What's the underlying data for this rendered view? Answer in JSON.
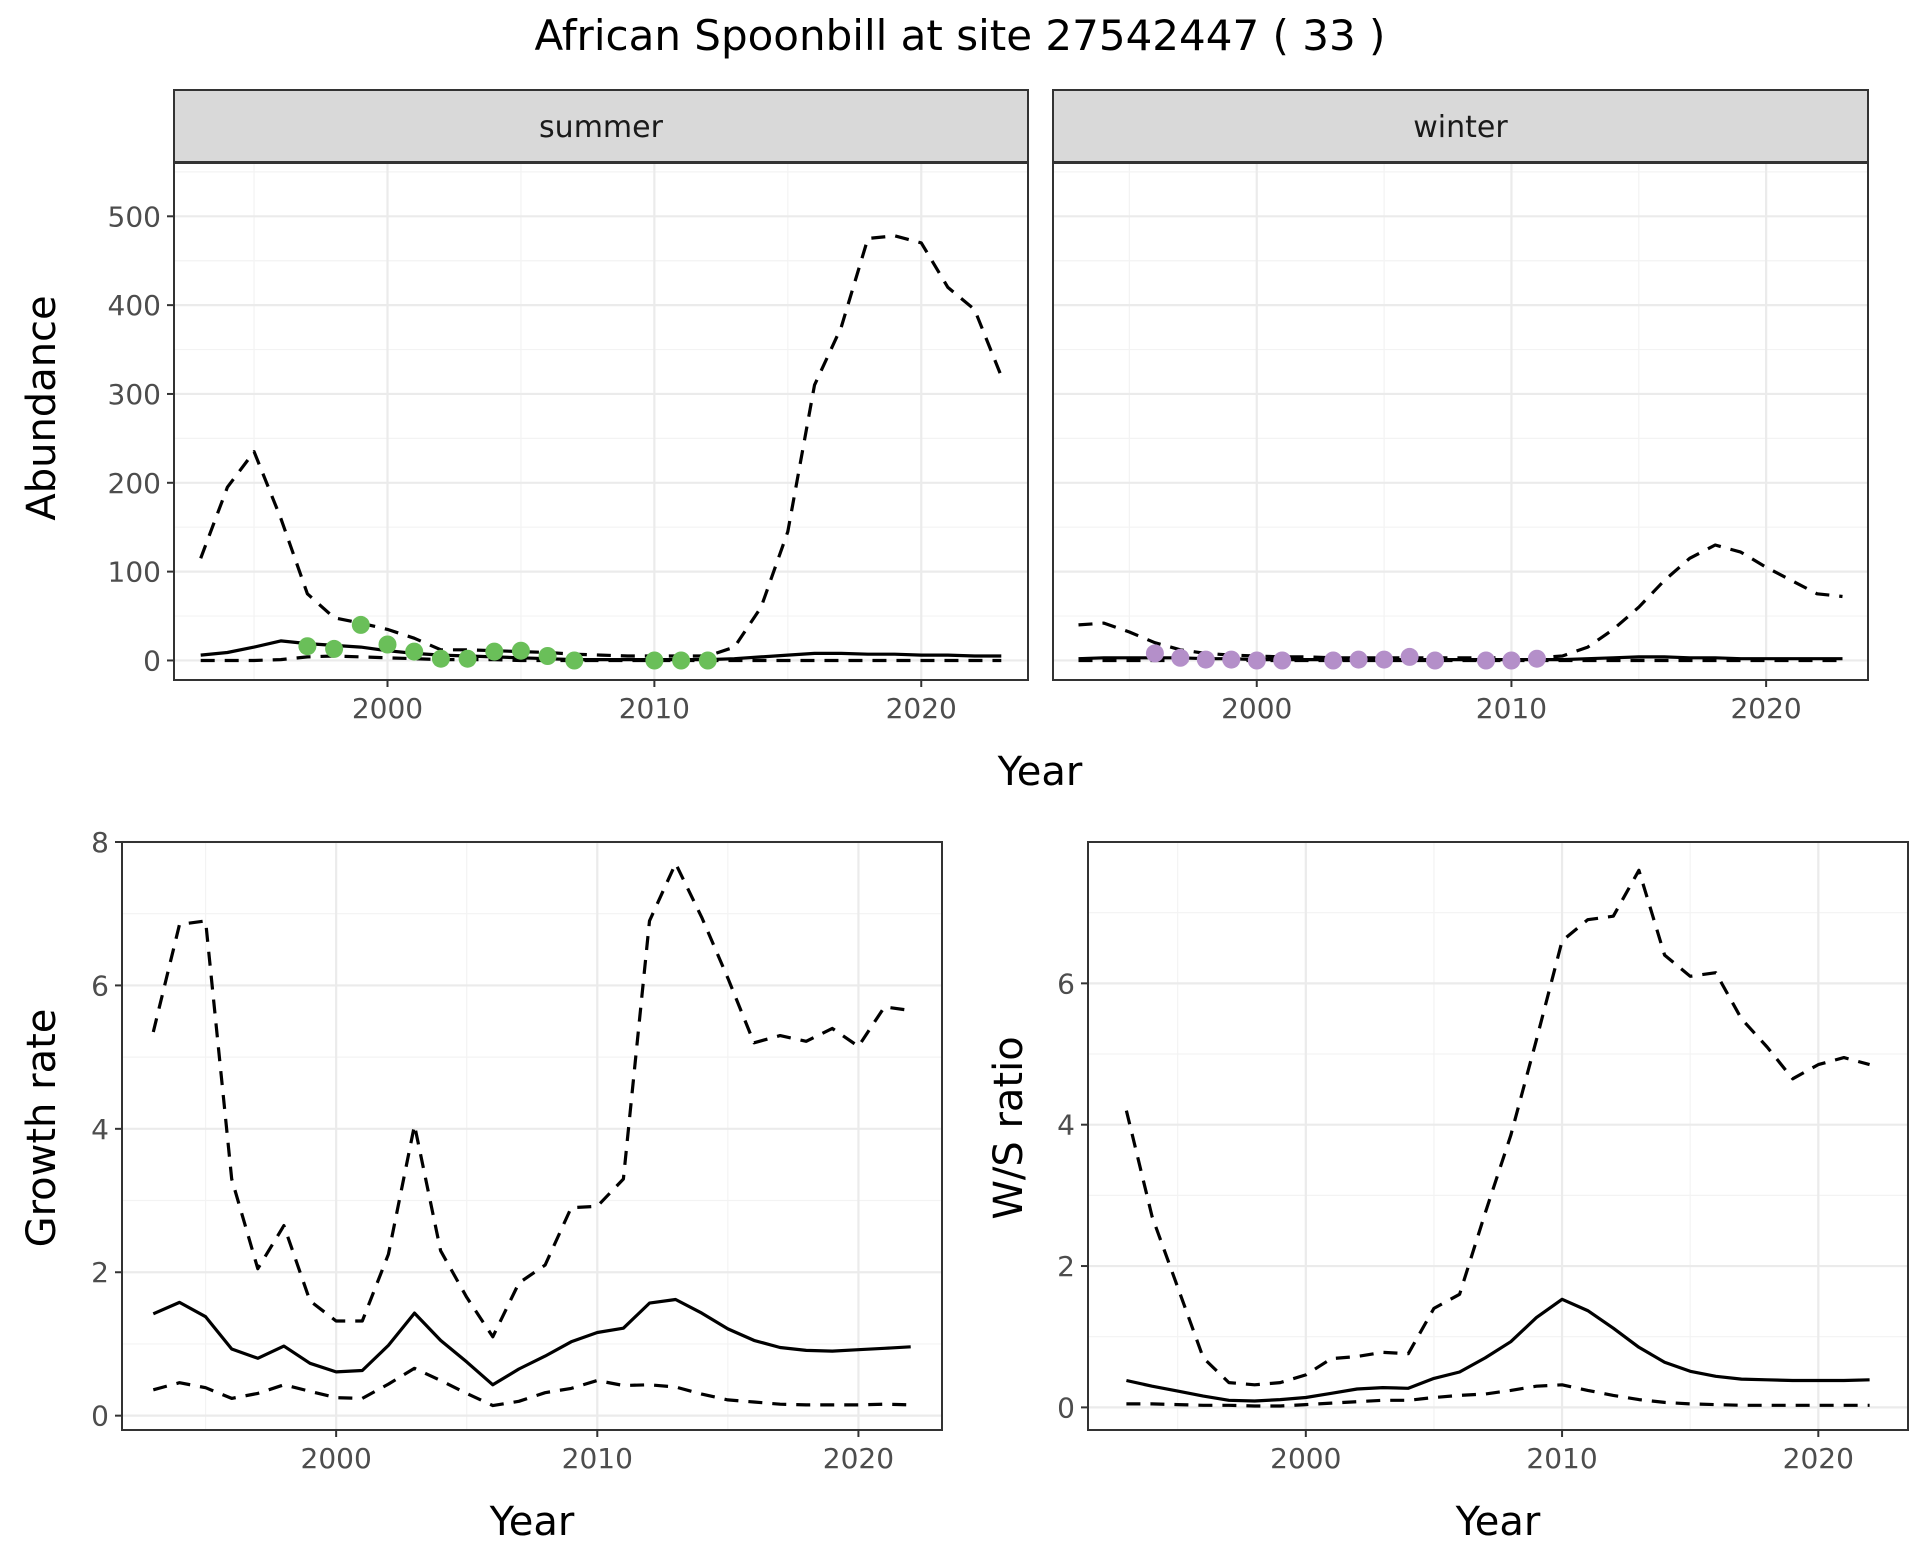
{
  "title": "African Spoonbill at site 27542447 ( 33 )",
  "chart_data": [
    {
      "type": "line",
      "panel": "abundance",
      "facets": [
        "summer",
        "winter"
      ],
      "xlabel": "Year",
      "ylabel": "Abundance",
      "xlim": [
        1992,
        2024
      ],
      "ylim": [
        -22,
        560
      ],
      "xticks": [
        2000,
        2010,
        2020
      ],
      "yticks": [
        0,
        100,
        200,
        300,
        400,
        500
      ],
      "grid": true,
      "colors": {
        "summer_points": "#6abf59",
        "winter_points": "#b48fc9",
        "lines": "#000000"
      },
      "summer": {
        "points": {
          "x": [
            1997,
            1998,
            1999,
            2000,
            2001,
            2002,
            2003,
            2004,
            2005,
            2006,
            2007,
            2010,
            2011,
            2012
          ],
          "y": [
            16,
            13,
            40,
            18,
            10,
            2,
            2,
            10,
            11,
            5,
            0,
            0,
            0,
            0
          ]
        },
        "lines": [
          {
            "style": "solid",
            "x": [
              1993,
              1994,
              1995,
              1996,
              1997,
              1998,
              1999,
              2000,
              2001,
              2002,
              2003,
              2004,
              2005,
              2006,
              2007,
              2008,
              2009,
              2010,
              2011,
              2012,
              2013,
              2014,
              2015,
              2016,
              2017,
              2018,
              2019,
              2020,
              2021,
              2022,
              2023
            ],
            "y": [
              6,
              9,
              15,
              22,
              19,
              17,
              15,
              11,
              8,
              6,
              5,
              4,
              3,
              2,
              1,
              1,
              1,
              1,
              1,
              1,
              2,
              4,
              6,
              8,
              8,
              7,
              7,
              6,
              6,
              5,
              5
            ]
          },
          {
            "style": "dashed",
            "x": [
              1993,
              1994,
              1995,
              1996,
              1997,
              1998,
              1999,
              2000,
              2001,
              2002,
              2003,
              2004,
              2005,
              2006,
              2007,
              2008,
              2009,
              2010,
              2011,
              2012,
              2013,
              2014,
              2015,
              2016,
              2017,
              2018,
              2019,
              2020,
              2021,
              2022,
              2023
            ],
            "y": [
              115,
              195,
              235,
              160,
              75,
              48,
              42,
              35,
              25,
              12,
              12,
              11,
              10,
              9,
              7,
              6,
              5,
              5,
              5,
              5,
              15,
              60,
              145,
              310,
              375,
              475,
              478,
              470,
              420,
              395,
              320
            ]
          },
          {
            "style": "dashed",
            "x": [
              1993,
              1994,
              1995,
              1996,
              1997,
              1998,
              1999,
              2000,
              2001,
              2002,
              2003,
              2004,
              2005,
              2006,
              2007,
              2008,
              2009,
              2010,
              2011,
              2012,
              2013,
              2014,
              2015,
              2016,
              2017,
              2018,
              2019,
              2020,
              2021,
              2022,
              2023
            ],
            "y": [
              0,
              0,
              0,
              1,
              4,
              5,
              4,
              3,
              2,
              1,
              1,
              1,
              0,
              0,
              0,
              0,
              0,
              0,
              0,
              0,
              0,
              0,
              0,
              0,
              0,
              0,
              0,
              0,
              0,
              0,
              0
            ]
          }
        ]
      },
      "winter": {
        "points": {
          "x": [
            1996,
            1997,
            1998,
            1999,
            2000,
            2001,
            2003,
            2004,
            2005,
            2006,
            2007,
            2009,
            2010,
            2011
          ],
          "y": [
            8,
            3,
            1,
            1,
            0,
            0,
            0,
            1,
            1,
            4,
            0,
            0,
            0,
            2
          ]
        },
        "lines": [
          {
            "style": "solid",
            "x": [
              1993,
              1994,
              1995,
              1996,
              1997,
              1998,
              1999,
              2000,
              2001,
              2002,
              2003,
              2004,
              2005,
              2006,
              2007,
              2008,
              2009,
              2010,
              2011,
              2012,
              2013,
              2014,
              2015,
              2016,
              2017,
              2018,
              2019,
              2020,
              2021,
              2022,
              2023
            ],
            "y": [
              2,
              3,
              3,
              3,
              3,
              2,
              2,
              1,
              1,
              1,
              1,
              1,
              1,
              1,
              1,
              1,
              1,
              1,
              1,
              1,
              2,
              3,
              4,
              4,
              3,
              3,
              2,
              2,
              2,
              2,
              2
            ]
          },
          {
            "style": "dashed",
            "x": [
              1993,
              1994,
              1995,
              1996,
              1997,
              1998,
              1999,
              2000,
              2001,
              2002,
              2003,
              2004,
              2005,
              2006,
              2007,
              2008,
              2009,
              2010,
              2011,
              2012,
              2013,
              2014,
              2015,
              2016,
              2017,
              2018,
              2019,
              2020,
              2021,
              2022,
              2023
            ],
            "y": [
              40,
              42,
              32,
              20,
              12,
              8,
              6,
              5,
              4,
              4,
              3,
              3,
              3,
              3,
              3,
              3,
              3,
              3,
              3,
              5,
              15,
              35,
              60,
              90,
              115,
              130,
              122,
              105,
              90,
              75,
              72
            ]
          },
          {
            "style": "dashed",
            "x": [
              1993,
              1994,
              1995,
              1996,
              1997,
              1998,
              1999,
              2000,
              2001,
              2002,
              2003,
              2004,
              2005,
              2006,
              2007,
              2008,
              2009,
              2010,
              2011,
              2012,
              2013,
              2014,
              2015,
              2016,
              2017,
              2018,
              2019,
              2020,
              2021,
              2022,
              2023
            ],
            "y": [
              0,
              0,
              0,
              0,
              0,
              0,
              0,
              0,
              0,
              0,
              0,
              0,
              0,
              0,
              0,
              0,
              0,
              0,
              0,
              0,
              0,
              0,
              0,
              0,
              0,
              0,
              0,
              0,
              0,
              0,
              0
            ]
          }
        ]
      }
    },
    {
      "type": "line",
      "panel": "growth",
      "xlabel": "Year",
      "ylabel": "Growth rate",
      "xlim": [
        1991.8,
        2023.2
      ],
      "ylim": [
        -0.2,
        8.0
      ],
      "xticks": [
        2000,
        2010,
        2020
      ],
      "yticks": [
        0,
        2,
        4,
        6,
        8
      ],
      "grid": true,
      "lines": [
        {
          "style": "solid",
          "x": [
            1993,
            1994,
            1995,
            1996,
            1997,
            1998,
            1999,
            2000,
            2001,
            2002,
            2003,
            2004,
            2005,
            2006,
            2007,
            2008,
            2009,
            2010,
            2011,
            2012,
            2013,
            2014,
            2015,
            2016,
            2017,
            2018,
            2019,
            2020,
            2021,
            2022
          ],
          "y": [
            1.42,
            1.58,
            1.38,
            0.93,
            0.8,
            0.97,
            0.73,
            0.61,
            0.63,
            0.98,
            1.43,
            1.05,
            0.75,
            0.43,
            0.65,
            0.83,
            1.03,
            1.16,
            1.22,
            1.57,
            1.62,
            1.43,
            1.21,
            1.05,
            0.95,
            0.91,
            0.9,
            0.92,
            0.94,
            0.96
          ]
        },
        {
          "style": "dashed",
          "x": [
            1993,
            1994,
            1995,
            1996,
            1997,
            1998,
            1999,
            2000,
            2001,
            2002,
            2003,
            2004,
            2005,
            2006,
            2007,
            2008,
            2009,
            2010,
            2011,
            2012,
            2013,
            2014,
            2015,
            2016,
            2017,
            2018,
            2019,
            2020,
            2021,
            2022
          ],
          "y": [
            5.35,
            6.85,
            6.9,
            3.3,
            2.05,
            2.65,
            1.6,
            1.32,
            1.32,
            2.25,
            4.05,
            2.3,
            1.65,
            1.1,
            1.85,
            2.1,
            2.9,
            2.92,
            3.3,
            6.9,
            7.7,
            6.95,
            6.1,
            5.2,
            5.3,
            5.22,
            5.4,
            5.15,
            5.7,
            5.65
          ]
        },
        {
          "style": "dashed",
          "x": [
            1993,
            1994,
            1995,
            1996,
            1997,
            1998,
            1999,
            2000,
            2001,
            2002,
            2003,
            2004,
            2005,
            2006,
            2007,
            2008,
            2009,
            2010,
            2011,
            2012,
            2013,
            2014,
            2015,
            2016,
            2017,
            2018,
            2019,
            2020,
            2021,
            2022
          ],
          "y": [
            0.36,
            0.46,
            0.39,
            0.24,
            0.31,
            0.43,
            0.34,
            0.25,
            0.24,
            0.44,
            0.66,
            0.49,
            0.31,
            0.14,
            0.2,
            0.32,
            0.38,
            0.49,
            0.42,
            0.43,
            0.4,
            0.3,
            0.22,
            0.19,
            0.16,
            0.15,
            0.15,
            0.15,
            0.16,
            0.15
          ]
        }
      ]
    },
    {
      "type": "line",
      "panel": "ratio",
      "xlabel": "Year",
      "ylabel": "W/S ratio",
      "xlim": [
        1991.5,
        2023.5
      ],
      "ylim": [
        -0.32,
        8.0
      ],
      "xticks": [
        2000,
        2010,
        2020
      ],
      "yticks": [
        0,
        2,
        4,
        6
      ],
      "grid": true,
      "lines": [
        {
          "style": "solid",
          "x": [
            1993,
            1994,
            1995,
            1996,
            1997,
            1998,
            1999,
            2000,
            2001,
            2002,
            2003,
            2004,
            2005,
            2006,
            2007,
            2008,
            2009,
            2010,
            2011,
            2012,
            2013,
            2014,
            2015,
            2016,
            2017,
            2018,
            2019,
            2020,
            2021,
            2022
          ],
          "y": [
            0.38,
            0.3,
            0.23,
            0.16,
            0.1,
            0.09,
            0.11,
            0.14,
            0.2,
            0.26,
            0.28,
            0.27,
            0.41,
            0.5,
            0.7,
            0.93,
            1.27,
            1.53,
            1.37,
            1.12,
            0.85,
            0.64,
            0.51,
            0.44,
            0.4,
            0.39,
            0.38,
            0.38,
            0.38,
            0.39
          ]
        },
        {
          "style": "dashed",
          "x": [
            1993,
            1994,
            1995,
            1996,
            1997,
            1998,
            1999,
            2000,
            2001,
            2002,
            2003,
            2004,
            2005,
            2006,
            2007,
            2008,
            2009,
            2010,
            2011,
            2012,
            2013,
            2014,
            2015,
            2016,
            2017,
            2018,
            2019,
            2020,
            2021,
            2022
          ],
          "y": [
            4.2,
            2.7,
            1.7,
            0.7,
            0.35,
            0.32,
            0.35,
            0.46,
            0.69,
            0.72,
            0.78,
            0.76,
            1.4,
            1.6,
            2.75,
            3.85,
            5.2,
            6.6,
            6.9,
            6.95,
            7.6,
            6.4,
            6.1,
            6.15,
            5.5,
            5.1,
            4.65,
            4.85,
            4.95,
            4.85
          ]
        },
        {
          "style": "dashed",
          "x": [
            1993,
            1994,
            1995,
            1996,
            1997,
            1998,
            1999,
            2000,
            2001,
            2002,
            2003,
            2004,
            2005,
            2006,
            2007,
            2008,
            2009,
            2010,
            2011,
            2012,
            2013,
            2014,
            2015,
            2016,
            2017,
            2018,
            2019,
            2020,
            2021,
            2022
          ],
          "y": [
            0.05,
            0.05,
            0.04,
            0.03,
            0.03,
            0.02,
            0.02,
            0.04,
            0.06,
            0.08,
            0.1,
            0.1,
            0.14,
            0.17,
            0.19,
            0.24,
            0.3,
            0.32,
            0.24,
            0.17,
            0.11,
            0.07,
            0.05,
            0.04,
            0.03,
            0.03,
            0.03,
            0.03,
            0.03,
            0.03
          ]
        }
      ]
    }
  ]
}
